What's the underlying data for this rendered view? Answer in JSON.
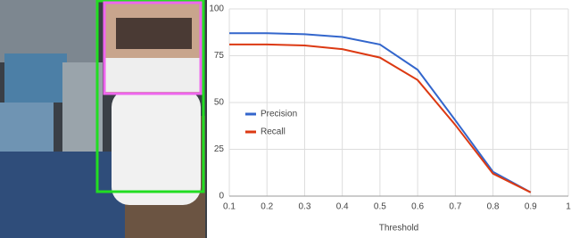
{
  "chart_data": {
    "type": "line",
    "x": [
      0.1,
      0.2,
      0.3,
      0.4,
      0.5,
      0.6,
      0.7,
      0.8,
      0.9
    ],
    "series": [
      {
        "name": "Precision",
        "color": "#3366cc",
        "values": [
          87,
          87,
          86.5,
          85,
          81,
          67.5,
          40.5,
          13,
          2
        ]
      },
      {
        "name": "Recall",
        "color": "#dc3912",
        "values": [
          81,
          81,
          80.5,
          78.5,
          74,
          62,
          38,
          12,
          2
        ]
      }
    ],
    "xlim": [
      0.1,
      1
    ],
    "xticks": [
      0.1,
      0.2,
      0.3,
      0.4,
      0.5,
      0.6,
      0.7,
      0.8,
      0.9,
      1
    ],
    "ylim": [
      0,
      100
    ],
    "yticks": [
      0,
      25,
      50,
      75,
      100
    ],
    "x_label": "Threshold",
    "grid": true,
    "legend": "left"
  }
}
